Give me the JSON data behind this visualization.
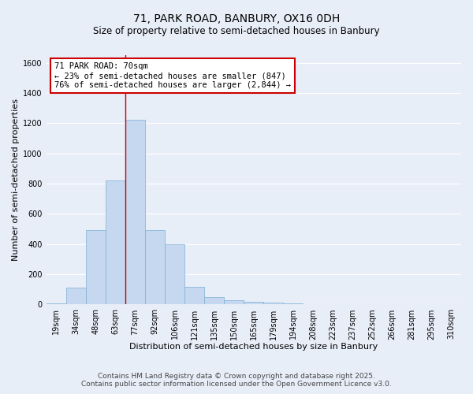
{
  "title1": "71, PARK ROAD, BANBURY, OX16 0DH",
  "title2": "Size of property relative to semi-detached houses in Banbury",
  "xlabel": "Distribution of semi-detached houses by size in Banbury",
  "ylabel": "Number of semi-detached properties",
  "categories": [
    "19sqm",
    "34sqm",
    "48sqm",
    "63sqm",
    "77sqm",
    "92sqm",
    "106sqm",
    "121sqm",
    "135sqm",
    "150sqm",
    "165sqm",
    "179sqm",
    "194sqm",
    "208sqm",
    "223sqm",
    "237sqm",
    "252sqm",
    "266sqm",
    "281sqm",
    "295sqm",
    "310sqm"
  ],
  "values": [
    10,
    110,
    490,
    820,
    1220,
    490,
    400,
    115,
    50,
    30,
    20,
    15,
    10,
    5,
    2,
    1,
    1,
    0,
    0,
    0,
    0
  ],
  "bar_color": "#c5d8f0",
  "bar_edge_color": "#7bafd4",
  "annotation_text": "71 PARK ROAD: 70sqm\n← 23% of semi-detached houses are smaller (847)\n76% of semi-detached houses are larger (2,844) →",
  "annotation_box_color": "#ffffff",
  "annotation_box_edge": "#cc0000",
  "red_line_color": "#cc0000",
  "ylim": [
    0,
    1650
  ],
  "yticks": [
    0,
    200,
    400,
    600,
    800,
    1000,
    1200,
    1400,
    1600
  ],
  "footer1": "Contains HM Land Registry data © Crown copyright and database right 2025.",
  "footer2": "Contains public sector information licensed under the Open Government Licence v3.0.",
  "bg_color": "#e8eef8",
  "grid_color": "#ffffff",
  "title1_fontsize": 10,
  "title2_fontsize": 8.5,
  "axis_label_fontsize": 8,
  "tick_fontsize": 7,
  "annotation_fontsize": 7.5,
  "footer_fontsize": 6.5
}
